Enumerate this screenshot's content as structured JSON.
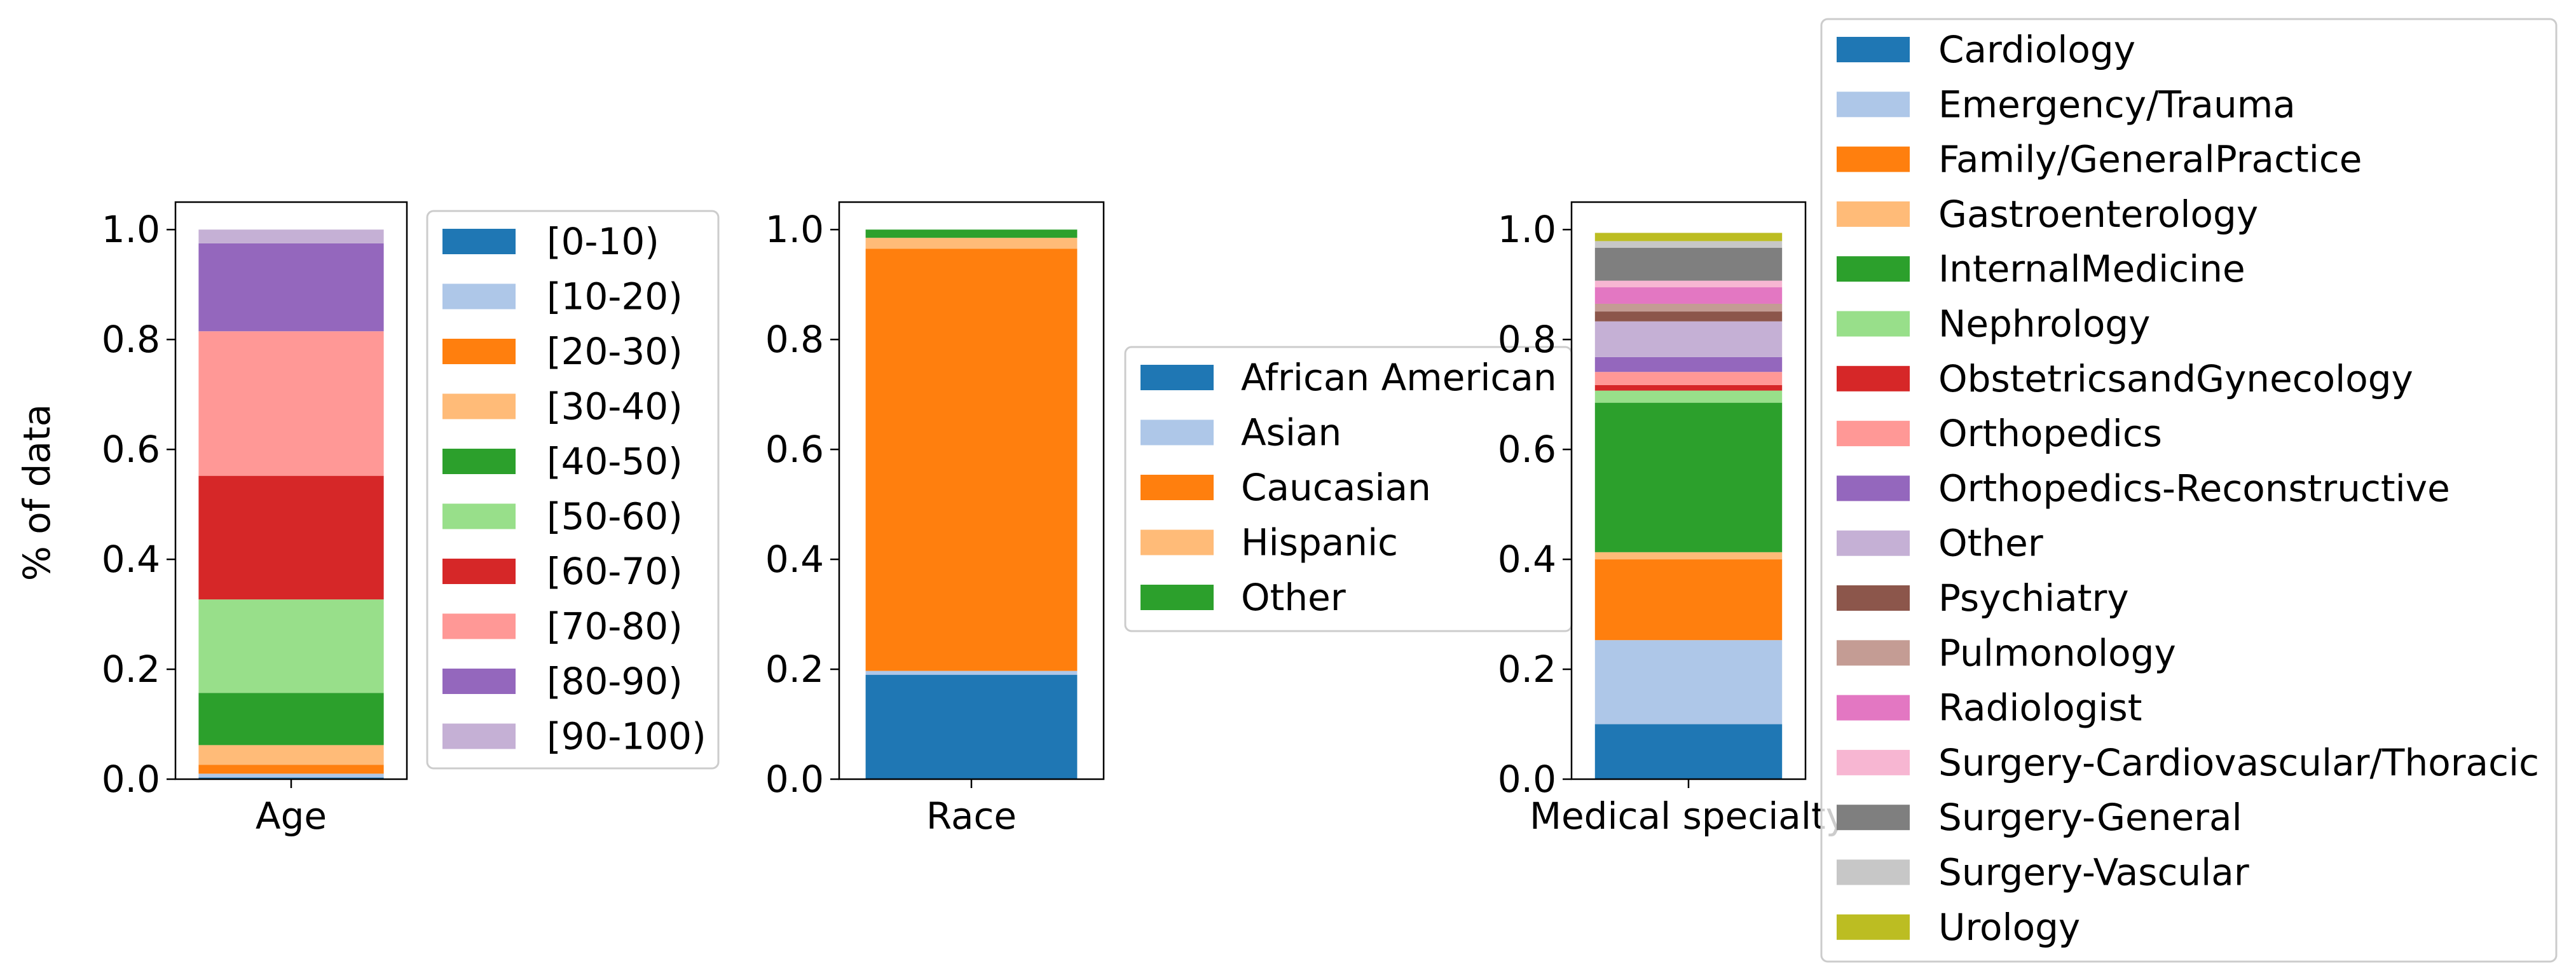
{
  "ylabel": "% of data",
  "yticks": [
    "0.0",
    "0.2",
    "0.4",
    "0.6",
    "0.8",
    "1.0"
  ],
  "chart_data": [
    {
      "type": "bar",
      "stacked": true,
      "xlabel": "Age",
      "ylabel": "% of data",
      "ylim": [
        0,
        1.05
      ],
      "legend_placement": "right",
      "series": [
        {
          "name": "[0-10)",
          "value": 0.003,
          "color": "#1f77b4"
        },
        {
          "name": "[10-20)",
          "value": 0.007,
          "color": "#aec7e8"
        },
        {
          "name": "[20-30)",
          "value": 0.016,
          "color": "#ff7f0e"
        },
        {
          "name": "[30-40)",
          "value": 0.036,
          "color": "#ffbb78"
        },
        {
          "name": "[40-50)",
          "value": 0.095,
          "color": "#2ca02c"
        },
        {
          "name": "[50-60)",
          "value": 0.17,
          "color": "#98df8a"
        },
        {
          "name": "[60-70)",
          "value": 0.225,
          "color": "#d62728"
        },
        {
          "name": "[70-80)",
          "value": 0.263,
          "color": "#ff9896"
        },
        {
          "name": "[80-90)",
          "value": 0.16,
          "color": "#9467bd"
        },
        {
          "name": "[90-100)",
          "value": 0.025,
          "color": "#c5b0d5"
        }
      ]
    },
    {
      "type": "bar",
      "stacked": true,
      "xlabel": "Race",
      "ylabel": "% of data",
      "ylim": [
        0,
        1.05
      ],
      "legend_placement": "right",
      "series": [
        {
          "name": "African American",
          "value": 0.19,
          "color": "#1f77b4"
        },
        {
          "name": "Asian",
          "value": 0.007,
          "color": "#aec7e8"
        },
        {
          "name": "Caucasian",
          "value": 0.768,
          "color": "#ff7f0e"
        },
        {
          "name": "Hispanic",
          "value": 0.02,
          "color": "#ffbb78"
        },
        {
          "name": "Other",
          "value": 0.015,
          "color": "#2ca02c"
        }
      ]
    },
    {
      "type": "bar",
      "stacked": true,
      "xlabel": "Medical specialty",
      "ylabel": "% of data",
      "ylim": [
        0,
        1.05
      ],
      "legend_placement": "right",
      "series": [
        {
          "name": "Cardiology",
          "value": 0.1,
          "color": "#1f77b4"
        },
        {
          "name": "Emergency/Trauma",
          "value": 0.153,
          "color": "#aec7e8"
        },
        {
          "name": "Family/GeneralPractice",
          "value": 0.147,
          "color": "#ff7f0e"
        },
        {
          "name": "Gastroenterology",
          "value": 0.013,
          "color": "#ffbb78"
        },
        {
          "name": "InternalMedicine",
          "value": 0.272,
          "color": "#2ca02c"
        },
        {
          "name": "Nephrology",
          "value": 0.022,
          "color": "#98df8a"
        },
        {
          "name": "ObstetricsandGynecology",
          "value": 0.01,
          "color": "#d62728"
        },
        {
          "name": "Orthopedics",
          "value": 0.024,
          "color": "#ff9896"
        },
        {
          "name": "Orthopedics-Reconstructive",
          "value": 0.027,
          "color": "#9467bd"
        },
        {
          "name": "Other",
          "value": 0.065,
          "color": "#c5b0d5"
        },
        {
          "name": "Psychiatry",
          "value": 0.018,
          "color": "#8c564b"
        },
        {
          "name": "Pulmonology",
          "value": 0.014,
          "color": "#c49c94"
        },
        {
          "name": "Radiologist",
          "value": 0.03,
          "color": "#e377c2"
        },
        {
          "name": "Surgery-Cardiovascular/Thoracic",
          "value": 0.012,
          "color": "#f7b6d2"
        },
        {
          "name": "Surgery-General",
          "value": 0.06,
          "color": "#7f7f7f"
        },
        {
          "name": "Surgery-Vascular",
          "value": 0.012,
          "color": "#c7c7c7"
        },
        {
          "name": "Urology",
          "value": 0.015,
          "color": "#bcbd22"
        }
      ]
    }
  ]
}
